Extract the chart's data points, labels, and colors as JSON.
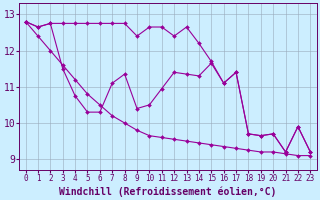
{
  "xlabel": "Windchill (Refroidissement éolien,°C)",
  "x": [
    0,
    1,
    2,
    3,
    4,
    5,
    6,
    7,
    8,
    9,
    10,
    11,
    12,
    13,
    14,
    15,
    16,
    17,
    18,
    19,
    20,
    21,
    22,
    23
  ],
  "line_top": [
    12.8,
    12.65,
    12.75,
    12.75,
    12.75,
    12.75,
    12.75,
    12.75,
    12.75,
    12.4,
    12.65,
    12.65,
    12.4,
    12.65,
    12.2,
    11.7,
    11.1,
    11.4,
    9.7,
    9.65,
    9.7,
    9.2,
    9.9,
    9.2
  ],
  "line_mid": [
    12.8,
    12.65,
    12.75,
    11.5,
    10.75,
    10.3,
    10.3,
    11.1,
    11.35,
    10.4,
    10.5,
    10.95,
    11.4,
    11.35,
    11.3,
    11.65,
    11.1,
    11.4,
    9.7,
    9.65,
    9.7,
    9.2,
    9.9,
    9.2
  ],
  "line_diag": [
    12.8,
    12.4,
    12.0,
    11.6,
    11.2,
    10.8,
    10.5,
    10.2,
    10.0,
    9.8,
    9.65,
    9.6,
    9.55,
    9.5,
    9.45,
    9.4,
    9.35,
    9.3,
    9.25,
    9.2,
    9.2,
    9.15,
    9.1,
    9.1
  ],
  "background_color": "#cceeff",
  "line_color": "#990099",
  "grid_color": "#99aabb",
  "ylim_min": 8.7,
  "ylim_max": 13.3,
  "yticks": [
    9,
    10,
    11,
    12,
    13
  ],
  "xticks": [
    0,
    1,
    2,
    3,
    4,
    5,
    6,
    7,
    8,
    9,
    10,
    11,
    12,
    13,
    14,
    15,
    16,
    17,
    18,
    19,
    20,
    21,
    22,
    23
  ],
  "font_color": "#660066",
  "tick_fontsize": 5.5,
  "label_fontsize": 7.0,
  "marker_size": 2.0,
  "line_width": 0.8
}
